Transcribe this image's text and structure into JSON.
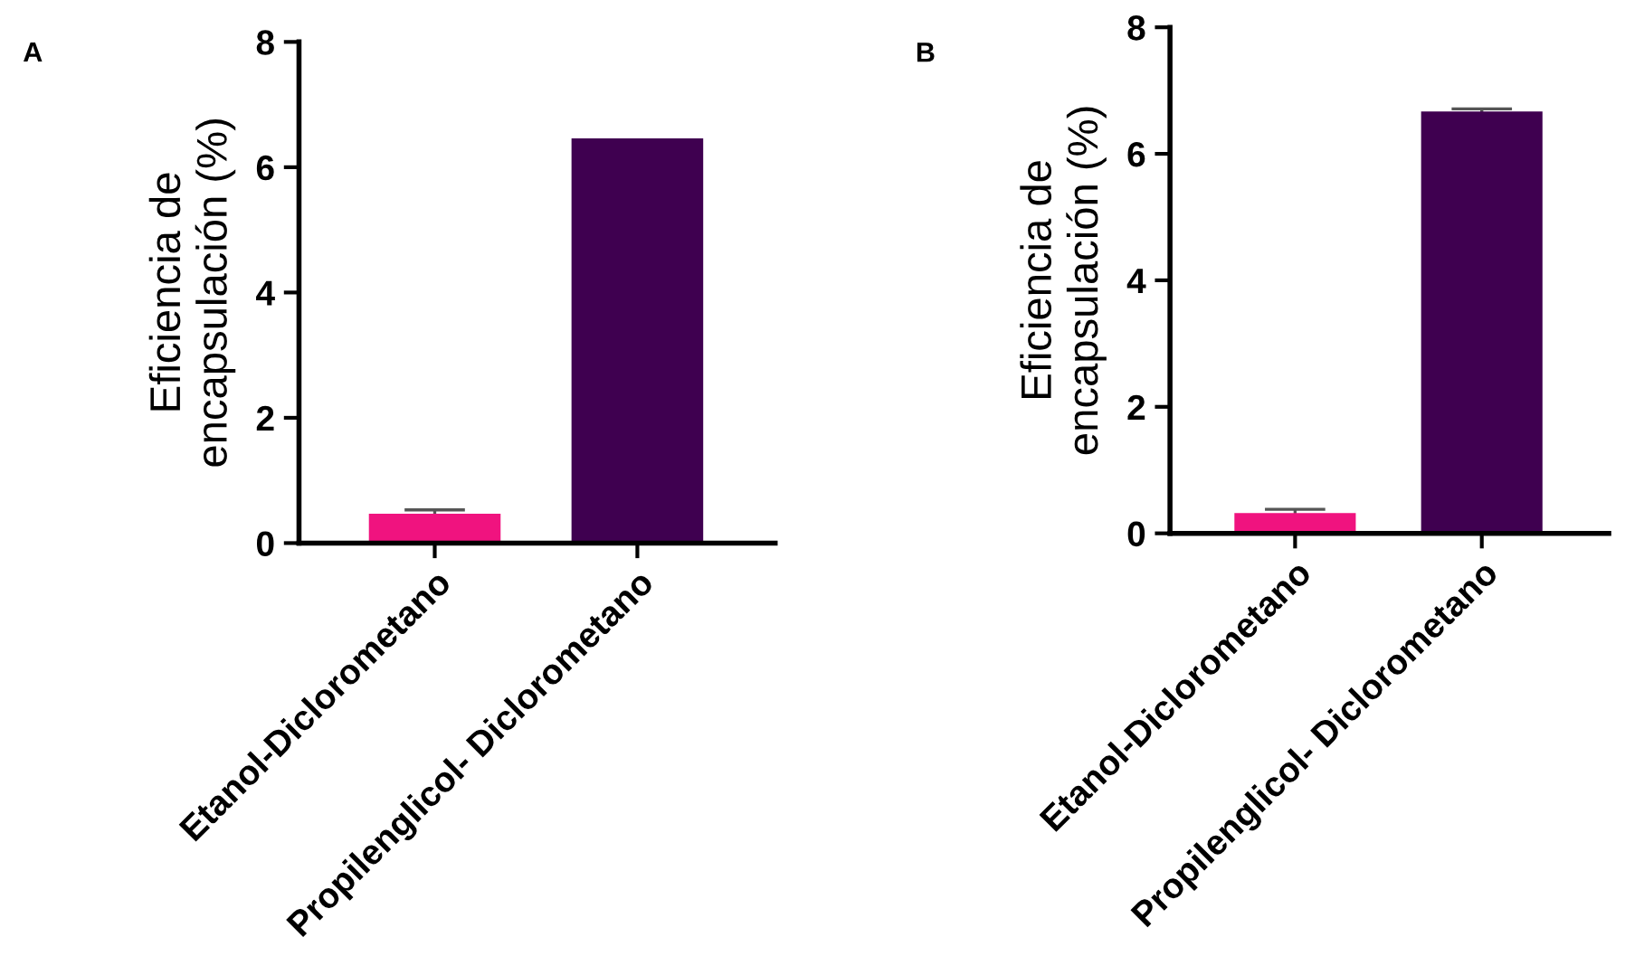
{
  "chart_data": [
    {
      "type": "bar",
      "title": "A",
      "ylabel": "Eficiencia de\nencapsulación (%)",
      "categories": [
        "Etanol-Diclorometano",
        "Propilenglicol- Diclorometano"
      ],
      "values": [
        0.47,
        6.46
      ],
      "errors": [
        0.06,
        null
      ],
      "colors": [
        "#f0137f",
        "#3f0050"
      ],
      "ylim": [
        0,
        8
      ],
      "yticks": [
        0,
        2,
        4,
        6,
        8
      ],
      "grid": false,
      "legend": false
    },
    {
      "type": "bar",
      "title": "B",
      "ylabel": "Eficiencia de\nencapsulación (%)",
      "categories": [
        "Etanol-Diclorometano",
        "Propilenglicol- Diclorometano"
      ],
      "values": [
        0.32,
        6.67
      ],
      "errors": [
        0.06,
        0.04
      ],
      "colors": [
        "#f0137f",
        "#3f0050"
      ],
      "ylim": [
        0,
        8
      ],
      "yticks": [
        0,
        2,
        4,
        6,
        8
      ],
      "grid": false,
      "legend": false
    }
  ]
}
